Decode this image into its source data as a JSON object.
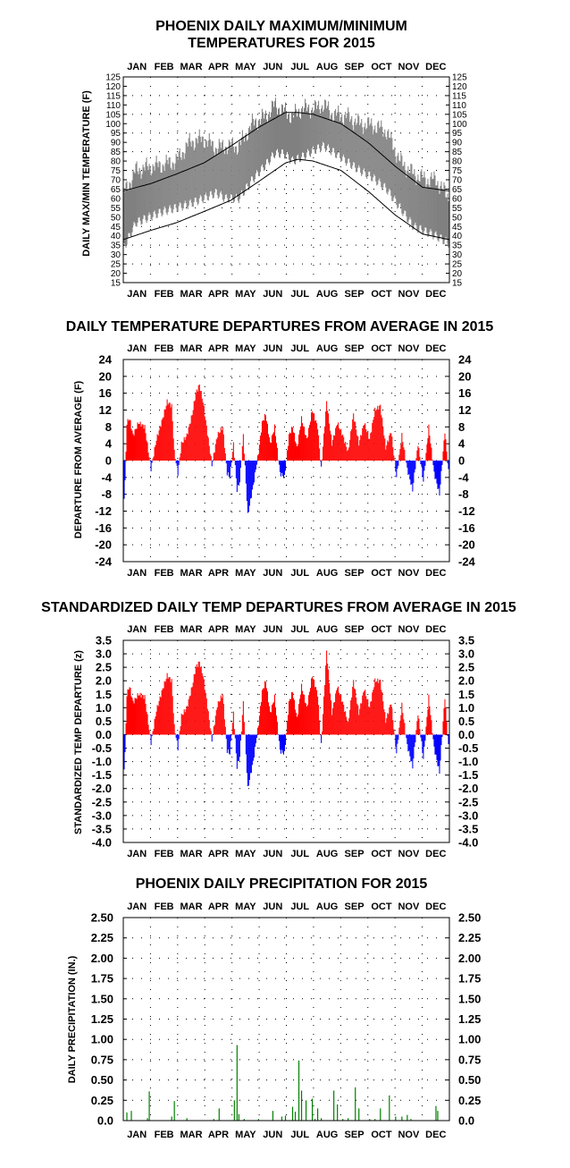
{
  "months": [
    "JAN",
    "FEB",
    "MAR",
    "APR",
    "MAY",
    "JUN",
    "JUL",
    "AUG",
    "SEP",
    "OCT",
    "NOV",
    "DEC"
  ],
  "chart_data": [
    {
      "type": "area",
      "title": "PHOENIX DAILY MAXIMUM/MINIMUM",
      "subtitle": "TEMPERATURES FOR 2015",
      "ylabel": "DAILY MAX/MIN TEMPERATURE (F)",
      "ylim": [
        15,
        125
      ],
      "yticks": [
        15,
        20,
        25,
        30,
        35,
        40,
        45,
        50,
        55,
        60,
        65,
        70,
        75,
        80,
        85,
        90,
        95,
        100,
        105,
        110,
        115,
        120,
        125
      ],
      "x_unit": "day of year",
      "grid": true,
      "series": [
        {
          "name": "",
          "role": "normal high",
          "x": [
            1,
            32,
            60,
            91,
            121,
            152,
            182,
            196,
            213,
            244,
            274,
            305,
            335,
            365
          ],
          "values": [
            64,
            68,
            73,
            79,
            88,
            98,
            106,
            106,
            105,
            100,
            90,
            77,
            66,
            64
          ]
        },
        {
          "name": "",
          "role": "normal low",
          "x": [
            1,
            32,
            60,
            91,
            121,
            152,
            182,
            196,
            213,
            244,
            274,
            305,
            335,
            365
          ],
          "values": [
            38,
            43,
            47,
            53,
            59,
            69,
            79,
            81,
            80,
            75,
            64,
            51,
            41,
            38
          ]
        },
        {
          "name": "",
          "role": "observed high",
          "x": [
            1,
            15,
            30,
            45,
            60,
            75,
            90,
            105,
            115,
            130,
            145,
            160,
            170,
            180,
            190,
            200,
            215,
            225,
            235,
            250,
            265,
            280,
            295,
            310,
            325,
            340,
            350,
            365
          ],
          "values": [
            62,
            75,
            77,
            78,
            80,
            90,
            92,
            87,
            88,
            88,
            100,
            104,
            110,
            107,
            104,
            108,
            108,
            110,
            105,
            104,
            100,
            99,
            96,
            80,
            73,
            70,
            70,
            60
          ]
        },
        {
          "name": "",
          "role": "observed low",
          "x": [
            1,
            15,
            30,
            45,
            60,
            75,
            90,
            105,
            115,
            130,
            145,
            160,
            170,
            180,
            190,
            200,
            215,
            225,
            235,
            250,
            265,
            280,
            295,
            310,
            325,
            340,
            350,
            365
          ],
          "values": [
            33,
            47,
            50,
            53,
            55,
            57,
            60,
            63,
            60,
            60,
            70,
            78,
            84,
            84,
            80,
            82,
            86,
            88,
            85,
            80,
            75,
            71,
            65,
            55,
            45,
            42,
            40,
            36
          ]
        }
      ]
    },
    {
      "type": "bar",
      "title": "DAILY TEMPERATURE DEPARTURES FROM AVERAGE IN 2015",
      "ylabel": "DEPARTURE FROM AVERAGE (F)",
      "ylim": [
        -24,
        24
      ],
      "yticks": [
        24,
        20,
        16,
        12,
        8,
        4,
        0,
        -4,
        -8,
        -12,
        -16,
        -20,
        -24
      ],
      "x_unit": "day of year",
      "grid": true,
      "x": [
        1,
        3,
        5,
        8,
        12,
        18,
        25,
        32,
        38,
        45,
        50,
        55,
        58,
        62,
        66,
        72,
        78,
        82,
        86,
        90,
        94,
        100,
        106,
        112,
        117,
        120,
        124,
        128,
        131,
        135,
        140,
        146,
        152,
        156,
        160,
        165,
        170,
        176,
        181,
        186,
        190,
        195,
        200,
        206,
        212,
        218,
        222,
        228,
        234,
        240,
        246,
        252,
        258,
        264,
        270,
        276,
        282,
        288,
        294,
        300,
        306,
        312,
        318,
        324,
        330,
        336,
        342,
        348,
        354,
        360,
        365
      ],
      "values": [
        -12,
        -5,
        9,
        10,
        6,
        9,
        8,
        -2,
        5,
        10,
        14,
        13,
        2,
        -3,
        4,
        6,
        11,
        16,
        18,
        14,
        8,
        -1,
        6,
        8,
        -3,
        -4,
        4,
        -7,
        -5,
        6,
        -13,
        -6,
        2,
        9,
        11,
        4,
        8,
        -3,
        -4,
        6,
        8,
        3,
        10,
        5,
        12,
        8,
        -2,
        14,
        4,
        9,
        6,
        2,
        11,
        4,
        9,
        5,
        12,
        13,
        3,
        7,
        -4,
        6,
        -2,
        -7,
        4,
        -5,
        8,
        -3,
        -8,
        7,
        -5
      ]
    },
    {
      "type": "bar",
      "title": "STANDARDIZED DAILY TEMP DEPARTURES FROM AVERAGE IN 2015",
      "ylabel": "STANDARDIZED TEMP DEPARTURE (z)",
      "ylim": [
        -4.0,
        3.5
      ],
      "yticks": [
        "3.5",
        "3.0",
        "2.5",
        "2.0",
        "1.5",
        "1.0",
        "0.5",
        "0.0",
        "-0.5",
        "-1.0",
        "-1.5",
        "-2.0",
        "-2.5",
        "-3.0",
        "-3.5",
        "-4.0"
      ],
      "x_unit": "day of year",
      "grid": true,
      "x": [
        1,
        3,
        5,
        8,
        12,
        18,
        25,
        32,
        38,
        45,
        50,
        55,
        58,
        62,
        66,
        72,
        78,
        82,
        86,
        90,
        94,
        100,
        106,
        112,
        117,
        120,
        124,
        128,
        131,
        135,
        140,
        146,
        152,
        156,
        160,
        165,
        170,
        176,
        181,
        186,
        190,
        195,
        200,
        206,
        212,
        218,
        222,
        228,
        234,
        240,
        246,
        252,
        258,
        264,
        270,
        276,
        282,
        288,
        294,
        300,
        306,
        312,
        318,
        324,
        330,
        336,
        342,
        348,
        354,
        360,
        365
      ],
      "values": [
        -1.7,
        -0.7,
        1.5,
        1.8,
        1.2,
        1.5,
        1.4,
        -0.3,
        0.9,
        1.7,
        2.2,
        2.0,
        0.3,
        -0.5,
        0.7,
        1.0,
        1.8,
        2.5,
        2.7,
        2.2,
        1.3,
        -0.2,
        1.1,
        1.5,
        -0.6,
        -0.7,
        0.8,
        -1.2,
        -0.8,
        1.2,
        -2.0,
        -1.0,
        0.4,
        1.6,
        2.0,
        0.8,
        1.4,
        -0.6,
        -0.7,
        1.2,
        1.6,
        0.6,
        1.8,
        1.0,
        2.2,
        1.5,
        -0.4,
        3.1,
        0.8,
        1.8,
        1.2,
        0.4,
        2.0,
        0.8,
        1.7,
        1.0,
        2.0,
        2.0,
        0.5,
        1.2,
        -0.7,
        1.1,
        -0.4,
        -1.2,
        0.8,
        -0.9,
        1.4,
        -0.5,
        -1.4,
        1.4,
        -0.9
      ]
    },
    {
      "type": "bar",
      "title": "PHOENIX DAILY PRECIPITATION FOR 2015",
      "ylabel": "DAILY PRECIPITATION (IN.)",
      "ylim": [
        0,
        2.5
      ],
      "yticks": [
        "2.50",
        "2.25",
        "2.00",
        "1.75",
        "1.50",
        "1.25",
        "1.00",
        "0.75",
        "0.50",
        "0.25",
        "0.0"
      ],
      "x_unit": "day of year",
      "grid": true,
      "x": [
        5,
        10,
        28,
        30,
        55,
        58,
        72,
        102,
        108,
        125,
        128,
        130,
        136,
        152,
        168,
        178,
        182,
        190,
        193,
        197,
        200,
        205,
        212,
        215,
        218,
        222,
        236,
        240,
        246,
        252,
        260,
        264,
        276,
        282,
        288,
        298,
        305,
        312,
        318,
        322,
        350,
        352
      ],
      "values": [
        0.1,
        0.12,
        0.03,
        0.36,
        0.05,
        0.24,
        0.03,
        0.02,
        0.15,
        0.25,
        0.93,
        0.08,
        0.02,
        0.02,
        0.12,
        0.05,
        0.06,
        0.17,
        0.11,
        0.74,
        0.37,
        0.25,
        0.27,
        0.02,
        0.15,
        0.03,
        0.37,
        0.2,
        0.02,
        0.03,
        0.41,
        0.15,
        0.02,
        0.02,
        0.15,
        0.31,
        0.05,
        0.05,
        0.07,
        0.02,
        0.18,
        0.12
      ]
    }
  ]
}
